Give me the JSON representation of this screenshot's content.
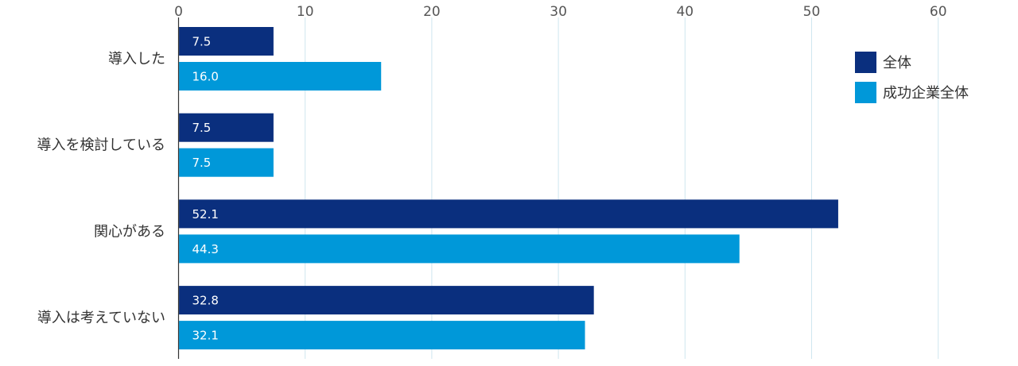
{
  "chart_data": {
    "type": "bar",
    "orientation": "horizontal",
    "categories": [
      "導入した",
      "導入を検討している",
      "関心がある",
      "導入は考えていない"
    ],
    "series": [
      {
        "name": "全体",
        "color": "#0a2f7e",
        "values": [
          7.5,
          7.5,
          52.1,
          32.8
        ],
        "labels": [
          "7.5",
          "7.5",
          "52.1",
          "32.8"
        ]
      },
      {
        "name": "成功企業全体",
        "color": "#0098d9",
        "values": [
          16.0,
          7.5,
          44.3,
          32.1
        ],
        "labels": [
          "16.0",
          "7.5",
          "44.3",
          "32.1"
        ]
      }
    ],
    "xlim": [
      0,
      60
    ],
    "x_ticks": [
      "0",
      "10",
      "20",
      "30",
      "40",
      "50",
      "60"
    ],
    "x_axis_position": "top",
    "grid": true,
    "grid_color": "#cfe6ef",
    "legend_position": "top-right"
  }
}
